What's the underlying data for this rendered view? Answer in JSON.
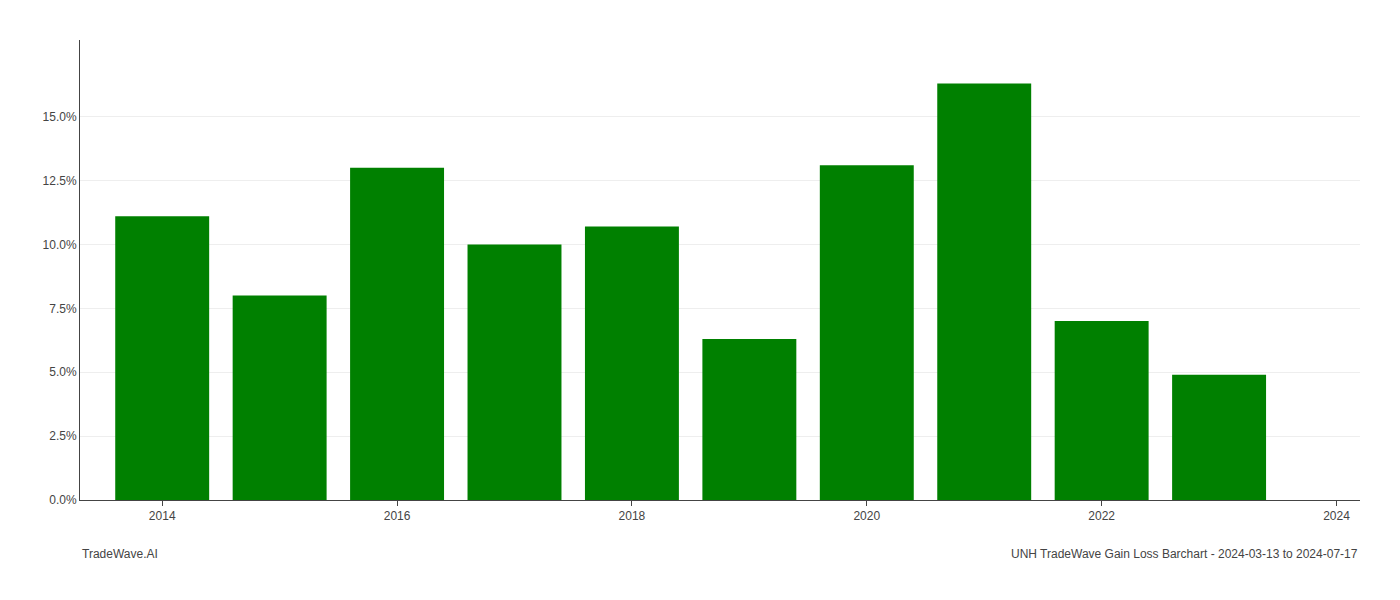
{
  "chart_data": {
    "type": "bar",
    "x": [
      2014,
      2015,
      2016,
      2017,
      2018,
      2019,
      2020,
      2021,
      2022,
      2023
    ],
    "values": [
      0.111,
      0.08,
      0.13,
      0.1,
      0.107,
      0.063,
      0.131,
      0.163,
      0.07,
      0.049
    ],
    "color": "#008000",
    "xlim": [
      2013.3,
      2024.2
    ],
    "xticks": [
      2014,
      2016,
      2018,
      2020,
      2022,
      2024
    ],
    "ylim": [
      0.0,
      0.18
    ],
    "yticks": [
      {
        "value": 0.0,
        "label": "0.0%"
      },
      {
        "value": 0.025,
        "label": "2.5%"
      },
      {
        "value": 0.05,
        "label": "5.0%"
      },
      {
        "value": 0.075,
        "label": "7.5%"
      },
      {
        "value": 0.1,
        "label": "10.0%"
      },
      {
        "value": 0.125,
        "label": "12.5%"
      },
      {
        "value": 0.15,
        "label": "15.0%"
      }
    ],
    "grid": true,
    "annotations": [
      "TradeWave.AI",
      "UNH TradeWave Gain Loss Barchart - 2024-03-13 to 2024-07-17"
    ]
  }
}
